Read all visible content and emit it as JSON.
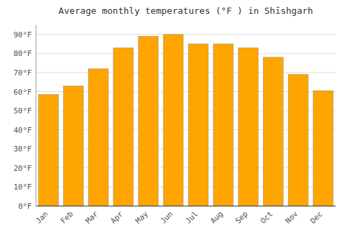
{
  "chart_data": {
    "type": "bar",
    "title": "Average monthly temperatures (°F ) in Shīshgarh",
    "categories": [
      "Jan",
      "Feb",
      "Mar",
      "Apr",
      "May",
      "Jun",
      "Jul",
      "Aug",
      "Sep",
      "Oct",
      "Nov",
      "Dec"
    ],
    "values": [
      58.5,
      63,
      72,
      83,
      89,
      90,
      85,
      85,
      83,
      78,
      69,
      60.5
    ],
    "color": "#FFA500",
    "ylim": [
      0,
      95
    ],
    "yticks": [
      {
        "value": 0,
        "label": "0°F"
      },
      {
        "value": 10,
        "label": "10°F"
      },
      {
        "value": 20,
        "label": "20°F"
      },
      {
        "value": 30,
        "label": "30°F"
      },
      {
        "value": 40,
        "label": "40°F"
      },
      {
        "value": 50,
        "label": "50°F"
      },
      {
        "value": 60,
        "label": "60°F"
      },
      {
        "value": 70,
        "label": "70°F"
      },
      {
        "value": 80,
        "label": "80°F"
      },
      {
        "value": 90,
        "label": "90°F"
      }
    ],
    "grid": true
  }
}
